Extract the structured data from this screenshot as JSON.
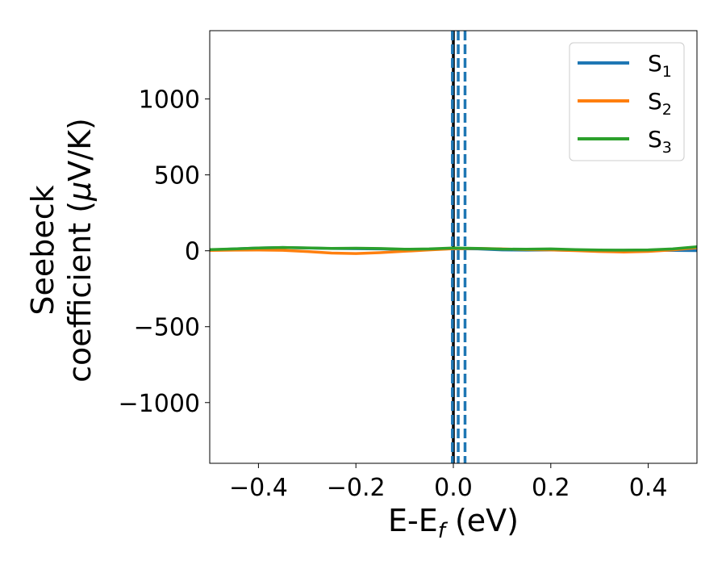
{
  "chart_data": {
    "type": "line",
    "xlabel_main": "E-E",
    "xlabel_sub": "f",
    "xlabel_tail": " (eV)",
    "ylabel_line1": "Seebeck",
    "ylabel_line2": "coefficient  (",
    "ylabel_mu": "μ",
    "ylabel_unit": "V/K)",
    "xlim": [
      -0.5,
      0.5
    ],
    "ylim": [
      -1400,
      1450
    ],
    "xticks": [
      -0.4,
      -0.2,
      0.0,
      0.2,
      0.4
    ],
    "xtick_labels": [
      "−0.4",
      "−0.2",
      "0.0",
      "0.2",
      "0.4"
    ],
    "yticks": [
      -1000,
      -500,
      0,
      500,
      1000
    ],
    "ytick_labels": [
      "−1000",
      "−500",
      "0",
      "500",
      "1000"
    ],
    "grid": false,
    "legend_position": "top-right",
    "vertical_lines": [
      {
        "x": 0.0,
        "color": "#000000",
        "style": "solid"
      },
      {
        "x": -0.002,
        "color": "#1f77b4",
        "style": "dashed"
      },
      {
        "x": 0.01,
        "color": "#1f77b4",
        "style": "dashed"
      },
      {
        "x": 0.024,
        "color": "#1f77b4",
        "style": "dashed"
      }
    ],
    "series": [
      {
        "name": "S",
        "sub": "1",
        "color": "#1f77b4",
        "x": [
          -0.5,
          -0.45,
          -0.4,
          -0.35,
          -0.3,
          -0.25,
          -0.2,
          -0.15,
          -0.1,
          -0.05,
          0.0,
          0.05,
          0.1,
          0.15,
          0.2,
          0.25,
          0.3,
          0.35,
          0.4,
          0.45,
          0.5
        ],
        "values": [
          5,
          12,
          18,
          22,
          18,
          15,
          14,
          12,
          9,
          10,
          14,
          12,
          6,
          4,
          5,
          3,
          2,
          3,
          4,
          2,
          1
        ]
      },
      {
        "name": "S",
        "sub": "2",
        "color": "#ff7f0e",
        "x": [
          -0.5,
          -0.45,
          -0.4,
          -0.35,
          -0.3,
          -0.25,
          -0.2,
          -0.15,
          -0.1,
          -0.05,
          0.0,
          0.05,
          0.1,
          0.15,
          0.2,
          0.25,
          0.3,
          0.35,
          0.4,
          0.45,
          0.5
        ],
        "values": [
          2,
          4,
          5,
          3,
          -5,
          -15,
          -18,
          -12,
          -3,
          6,
          14,
          16,
          12,
          8,
          6,
          1,
          -5,
          -8,
          -4,
          6,
          20
        ]
      },
      {
        "name": "S",
        "sub": "3",
        "color": "#2ca02c",
        "x": [
          -0.5,
          -0.45,
          -0.4,
          -0.35,
          -0.3,
          -0.25,
          -0.2,
          -0.15,
          -0.1,
          -0.05,
          0.0,
          0.05,
          0.1,
          0.15,
          0.2,
          0.25,
          0.3,
          0.35,
          0.4,
          0.45,
          0.5
        ],
        "values": [
          8,
          12,
          18,
          22,
          19,
          16,
          17,
          15,
          10,
          12,
          18,
          16,
          11,
          10,
          12,
          8,
          5,
          4,
          6,
          12,
          26
        ]
      }
    ]
  }
}
